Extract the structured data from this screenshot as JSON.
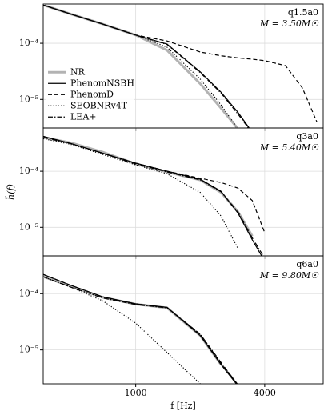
{
  "chart_data": [
    {
      "type": "line",
      "annotation": "q1.5a0",
      "subtitle": "M = 3.50M☉",
      "legend": "center left",
      "log_x": true,
      "log_y": true,
      "grid": true,
      "x": [
        370,
        500,
        700,
        1000,
        1400,
        2000,
        2500,
        3000,
        3500,
        4000,
        5000,
        6000,
        7000
      ],
      "xlim": [
        370,
        7500
      ],
      "xticks": [
        1000,
        4000
      ],
      "ylim": [
        3.1e-06,
        0.0005
      ],
      "yticks": [
        {
          "value": 1e-05,
          "label": "10⁻⁵"
        },
        {
          "value": 0.0001,
          "label": "10⁻⁴"
        }
      ],
      "series": [
        {
          "name": "NR",
          "color": "#b3b3b3",
          "linestyle": "solid",
          "values": [
            0.00048,
            0.00033,
            0.00022,
            0.00014,
            7.5e-05,
            1.9e-05,
            7e-06,
            3e-06,
            null,
            null,
            null,
            null,
            null
          ]
        },
        {
          "name": "PhenomNSBH",
          "color": "#000000",
          "linestyle": "solid",
          "values": [
            0.00048,
            0.00033,
            0.00022,
            0.00014,
            9.7e-05,
            3.1e-05,
            1.35e-05,
            5.9e-06,
            2.6e-06,
            null,
            null,
            null,
            null
          ]
        },
        {
          "name": "PhenomD",
          "color": "#000000",
          "linestyle": "dashed",
          "values": [
            0.00048,
            0.00033,
            0.00022,
            0.00014,
            0.00011,
            7e-05,
            6e-05,
            5.5e-05,
            5.2e-05,
            4.9e-05,
            4e-05,
            1.6e-05,
            4e-06
          ]
        },
        {
          "name": "SEOBNRv4T",
          "color": "#000000",
          "linestyle": "dotted",
          "values": [
            0.00048,
            0.00033,
            0.00022,
            0.00014,
            8.5e-05,
            2.3e-05,
            8e-06,
            3e-06,
            null,
            null,
            null,
            null,
            null
          ]
        },
        {
          "name": "LEA+",
          "color": "#000000",
          "linestyle": "dashdot",
          "values": [
            0.00048,
            0.00033,
            0.00022,
            0.00014,
            9.5e-05,
            3e-05,
            1.3e-05,
            5.5e-06,
            2.5e-06,
            null,
            null,
            null,
            null
          ]
        }
      ]
    },
    {
      "type": "line",
      "annotation": "q3a0",
      "subtitle": "M = 5.40M☉",
      "ylabel": "h̃(f)",
      "log_x": true,
      "log_y": true,
      "grid": true,
      "x": [
        370,
        500,
        700,
        1000,
        1400,
        2000,
        2500,
        3000,
        3500,
        4000,
        5000,
        6000,
        7000
      ],
      "xlim": [
        370,
        7500
      ],
      "xticks": [
        1000,
        4000
      ],
      "ylim": [
        3.1e-06,
        0.00059
      ],
      "yticks": [
        {
          "value": 1e-05,
          "label": "10⁻⁵"
        },
        {
          "value": 0.0001,
          "label": "10⁻⁴"
        }
      ],
      "series": [
        {
          "color": "#b3b3b3",
          "linestyle": "solid",
          "values": [
            0.0004,
            0.00032,
            0.00022,
            0.000135,
            9.7e-05,
            7e-05,
            4.2e-05,
            1.9e-05,
            7e-06,
            null,
            null,
            null,
            null
          ]
        },
        {
          "color": "#000000",
          "linestyle": "solid",
          "values": [
            0.00042,
            0.00031,
            0.00021,
            0.00014,
            0.0001,
            7.2e-05,
            4.4e-05,
            1.8e-05,
            6e-06,
            2.5e-06,
            null,
            null,
            null
          ]
        },
        {
          "color": "#000000",
          "linestyle": "dashed",
          "values": [
            0.00042,
            0.00031,
            0.00021,
            0.00014,
            0.0001,
            7.5e-05,
            6.3e-05,
            5e-05,
            3e-05,
            8e-06,
            null,
            null,
            null
          ]
        },
        {
          "color": "#000000",
          "linestyle": "dotted",
          "values": [
            0.00038,
            0.0003,
            0.0002,
            0.00013,
            9e-05,
            4.2e-05,
            1.6e-05,
            4.2e-06,
            null,
            null,
            null,
            null,
            null
          ]
        },
        {
          "color": "#000000",
          "linestyle": "dashdot",
          "values": [
            0.0004,
            0.00031,
            0.00021,
            0.000135,
            9.7e-05,
            7e-05,
            4.3e-05,
            1.9e-05,
            6.5e-06,
            2.8e-06,
            null,
            null,
            null
          ]
        }
      ]
    },
    {
      "type": "line",
      "annotation": "q6a0",
      "subtitle": "M = 9.80M☉",
      "xlabel": "f [Hz]",
      "log_x": true,
      "log_y": true,
      "grid": true,
      "x": [
        370,
        500,
        700,
        1000,
        1400,
        2000,
        2500,
        3000,
        3500,
        4000,
        5000,
        6000,
        7000
      ],
      "xlim": [
        370,
        7500
      ],
      "xticks": [
        1000,
        4000
      ],
      "ylim": [
        2.5e-06,
        0.00047
      ],
      "yticks": [
        {
          "value": 1e-05,
          "label": "10⁻⁵"
        },
        {
          "value": 0.0001,
          "label": "10⁻⁴"
        }
      ],
      "series": [
        {
          "color": "#b3b3b3",
          "linestyle": "solid",
          "values": [
            0.0002,
            0.000135,
            8.6e-05,
            6.5e-05,
            5.6e-05,
            1.8e-05,
            5.5e-06,
            null,
            null,
            null,
            null,
            null,
            null
          ]
        },
        {
          "color": "#000000",
          "linestyle": "solid",
          "values": [
            0.00022,
            0.00014,
            8.8e-05,
            6.6e-05,
            5.7e-05,
            1.8e-05,
            5.5e-06,
            2.3e-06,
            null,
            null,
            null,
            null,
            null
          ]
        },
        {
          "color": "#000000",
          "linestyle": "dashed",
          "values": [
            0.00022,
            0.00014,
            8.8e-05,
            6.6e-05,
            5.7e-05,
            1.9e-05,
            5.8e-06,
            2.4e-06,
            null,
            null,
            null,
            null,
            null
          ]
        },
        {
          "color": "#000000",
          "linestyle": "dotted",
          "values": [
            0.0002,
            0.00013,
            7.5e-05,
            3e-05,
            9e-06,
            2.5e-06,
            null,
            null,
            null,
            null,
            null,
            null,
            null
          ]
        },
        {
          "color": "#000000",
          "linestyle": "dashdot",
          "values": [
            0.0002,
            0.00013,
            8.4e-05,
            6.4e-05,
            5.6e-05,
            1.9e-05,
            6e-06,
            2.4e-06,
            null,
            null,
            null,
            null,
            null
          ]
        }
      ]
    }
  ]
}
